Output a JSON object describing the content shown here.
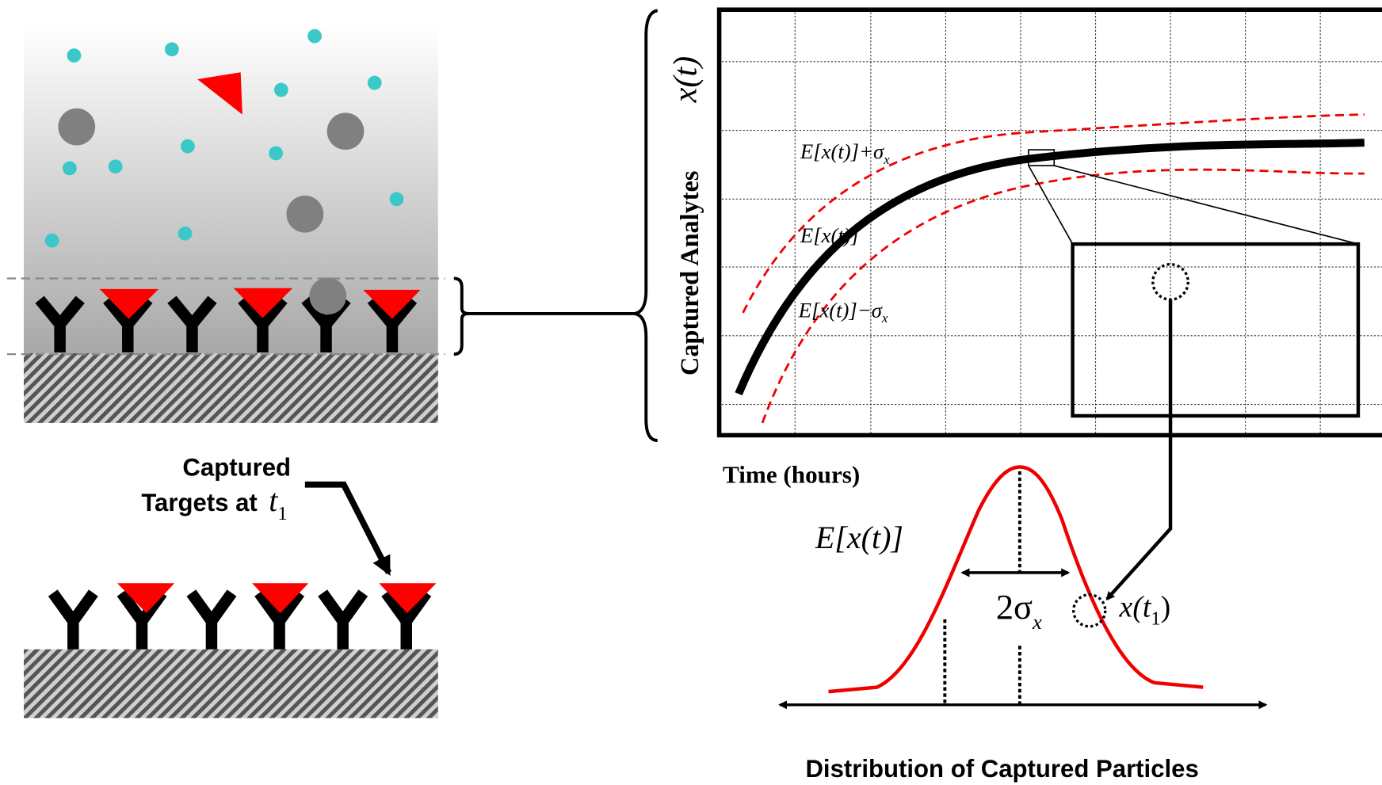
{
  "left": {
    "captured_label": [
      "Captured",
      "Targets at"
    ],
    "t_symbol": {
      "main": "t",
      "sub": "1"
    }
  },
  "plot": {
    "y_symbol": "x(t)",
    "y_label": "Captured Analytes",
    "x_label": "Time (hours)",
    "upper_curve": {
      "main": "E[x(t)]+σ",
      "sub": "x"
    },
    "mean_curve": {
      "main": "E[x(t)]"
    },
    "lower_curve": {
      "main": "E[x(t)]−σ",
      "sub": "x"
    }
  },
  "distribution": {
    "mean_label": "E[x(t)]",
    "width_label": {
      "main": "2σ",
      "sub": "x"
    },
    "sample_label": {
      "main": "x(t",
      "sub": "1",
      "tail": ")"
    },
    "title": "Distribution of Captured Particles"
  }
}
